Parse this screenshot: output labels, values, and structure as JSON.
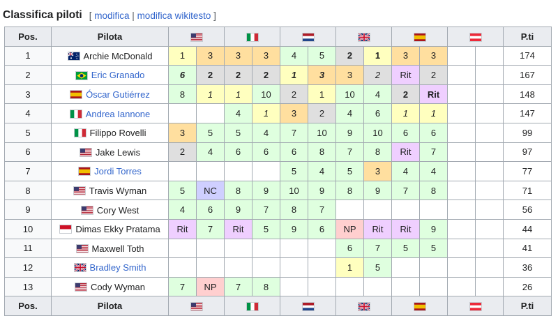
{
  "heading": {
    "title": "Classifica piloti",
    "edit_open": "[",
    "edit_label": "modifica",
    "edit_sep": "|",
    "wiki_label": "modifica wikitesto",
    "edit_close": "]"
  },
  "table": {
    "pos_header": "Pos.",
    "driver_header": "Pilota",
    "points_header": "P.ti",
    "rounds": [
      {
        "flag": "us-flag"
      },
      {
        "flag": "it-flag"
      },
      {
        "flag": "nl-flag"
      },
      {
        "flag": "gb-flag"
      },
      {
        "flag": "es-flag"
      },
      {
        "flag": "at-flag"
      }
    ],
    "rows": [
      {
        "pos": "1",
        "name": "Archie McDonald",
        "flag": "au-flag",
        "link": false,
        "points": "174",
        "results": [
          {
            "v": "1",
            "c": "c1"
          },
          {
            "v": "3",
            "c": "c3"
          },
          {
            "v": "3",
            "c": "c3"
          },
          {
            "v": "3",
            "c": "c3"
          },
          {
            "v": "4",
            "c": "cp"
          },
          {
            "v": "5",
            "c": "cp"
          },
          {
            "v": "2",
            "c": "c2",
            "b": true
          },
          {
            "v": "1",
            "c": "c1",
            "b": true
          },
          {
            "v": "3",
            "c": "c3"
          },
          {
            "v": "3",
            "c": "c3"
          },
          {
            "v": "",
            "c": ""
          },
          {
            "v": "",
            "c": ""
          }
        ]
      },
      {
        "pos": "2",
        "name": "Eric Granado",
        "flag": "br-flag",
        "link": true,
        "points": "167",
        "results": [
          {
            "v": "6",
            "c": "cp",
            "b": true,
            "i": true
          },
          {
            "v": "2",
            "c": "c2",
            "b": true
          },
          {
            "v": "2",
            "c": "c2",
            "b": true
          },
          {
            "v": "2",
            "c": "c2",
            "b": true
          },
          {
            "v": "1",
            "c": "c1",
            "b": true,
            "i": true
          },
          {
            "v": "3",
            "c": "c3",
            "b": true,
            "i": true
          },
          {
            "v": "3",
            "c": "c3"
          },
          {
            "v": "2",
            "c": "c2",
            "i": true
          },
          {
            "v": "Rit",
            "c": "cr"
          },
          {
            "v": "2",
            "c": "c2"
          },
          {
            "v": "",
            "c": ""
          },
          {
            "v": "",
            "c": ""
          }
        ]
      },
      {
        "pos": "3",
        "name": "Óscar Gutiérrez",
        "flag": "es-flag",
        "link": true,
        "points": "148",
        "results": [
          {
            "v": "8",
            "c": "cp"
          },
          {
            "v": "1",
            "c": "c1",
            "i": true
          },
          {
            "v": "1",
            "c": "c1",
            "i": true
          },
          {
            "v": "10",
            "c": "cp"
          },
          {
            "v": "2",
            "c": "c2"
          },
          {
            "v": "1",
            "c": "c1"
          },
          {
            "v": "10",
            "c": "cp"
          },
          {
            "v": "4",
            "c": "cp"
          },
          {
            "v": "2",
            "c": "c2",
            "b": true
          },
          {
            "v": "Rit",
            "c": "cr",
            "b": true
          },
          {
            "v": "",
            "c": ""
          },
          {
            "v": "",
            "c": ""
          }
        ]
      },
      {
        "pos": "4",
        "name": "Andrea Iannone",
        "flag": "it-flag",
        "link": true,
        "points": "147",
        "results": [
          {
            "v": "",
            "c": ""
          },
          {
            "v": "",
            "c": ""
          },
          {
            "v": "4",
            "c": "cp"
          },
          {
            "v": "1",
            "c": "c1",
            "i": true
          },
          {
            "v": "3",
            "c": "c3"
          },
          {
            "v": "2",
            "c": "c2"
          },
          {
            "v": "4",
            "c": "cp"
          },
          {
            "v": "6",
            "c": "cp"
          },
          {
            "v": "1",
            "c": "c1",
            "i": true
          },
          {
            "v": "1",
            "c": "c1",
            "i": true
          },
          {
            "v": "",
            "c": ""
          },
          {
            "v": "",
            "c": ""
          }
        ]
      },
      {
        "pos": "5",
        "name": "Filippo Rovelli",
        "flag": "it-flag",
        "link": false,
        "points": "99",
        "results": [
          {
            "v": "3",
            "c": "c3"
          },
          {
            "v": "5",
            "c": "cp"
          },
          {
            "v": "5",
            "c": "cp"
          },
          {
            "v": "4",
            "c": "cp"
          },
          {
            "v": "7",
            "c": "cp"
          },
          {
            "v": "10",
            "c": "cp"
          },
          {
            "v": "9",
            "c": "cp"
          },
          {
            "v": "10",
            "c": "cp"
          },
          {
            "v": "6",
            "c": "cp"
          },
          {
            "v": "6",
            "c": "cp"
          },
          {
            "v": "",
            "c": ""
          },
          {
            "v": "",
            "c": ""
          }
        ]
      },
      {
        "pos": "6",
        "name": "Jake Lewis",
        "flag": "us-flag",
        "link": false,
        "points": "97",
        "results": [
          {
            "v": "2",
            "c": "c2"
          },
          {
            "v": "4",
            "c": "cp"
          },
          {
            "v": "6",
            "c": "cp"
          },
          {
            "v": "6",
            "c": "cp"
          },
          {
            "v": "6",
            "c": "cp"
          },
          {
            "v": "8",
            "c": "cp"
          },
          {
            "v": "7",
            "c": "cp"
          },
          {
            "v": "8",
            "c": "cp"
          },
          {
            "v": "Rit",
            "c": "cr"
          },
          {
            "v": "7",
            "c": "cp"
          },
          {
            "v": "",
            "c": ""
          },
          {
            "v": "",
            "c": ""
          }
        ]
      },
      {
        "pos": "7",
        "name": "Jordi Torres",
        "flag": "es-flag",
        "link": true,
        "points": "77",
        "results": [
          {
            "v": "",
            "c": ""
          },
          {
            "v": "",
            "c": ""
          },
          {
            "v": "",
            "c": ""
          },
          {
            "v": "",
            "c": ""
          },
          {
            "v": "5",
            "c": "cp"
          },
          {
            "v": "4",
            "c": "cp"
          },
          {
            "v": "5",
            "c": "cp"
          },
          {
            "v": "3",
            "c": "c3"
          },
          {
            "v": "4",
            "c": "cp"
          },
          {
            "v": "4",
            "c": "cp"
          },
          {
            "v": "",
            "c": ""
          },
          {
            "v": "",
            "c": ""
          }
        ]
      },
      {
        "pos": "8",
        "name": "Travis Wyman",
        "flag": "us-flag",
        "link": false,
        "points": "71",
        "results": [
          {
            "v": "5",
            "c": "cp"
          },
          {
            "v": "NC",
            "c": "cnc"
          },
          {
            "v": "8",
            "c": "cp"
          },
          {
            "v": "9",
            "c": "cp"
          },
          {
            "v": "10",
            "c": "cp"
          },
          {
            "v": "9",
            "c": "cp"
          },
          {
            "v": "8",
            "c": "cp"
          },
          {
            "v": "9",
            "c": "cp"
          },
          {
            "v": "7",
            "c": "cp"
          },
          {
            "v": "8",
            "c": "cp"
          },
          {
            "v": "",
            "c": ""
          },
          {
            "v": "",
            "c": ""
          }
        ]
      },
      {
        "pos": "9",
        "name": "Cory West",
        "flag": "us-flag",
        "link": false,
        "points": "56",
        "results": [
          {
            "v": "4",
            "c": "cp"
          },
          {
            "v": "6",
            "c": "cp"
          },
          {
            "v": "9",
            "c": "cp"
          },
          {
            "v": "7",
            "c": "cp"
          },
          {
            "v": "8",
            "c": "cp"
          },
          {
            "v": "7",
            "c": "cp"
          },
          {
            "v": "",
            "c": ""
          },
          {
            "v": "",
            "c": ""
          },
          {
            "v": "",
            "c": ""
          },
          {
            "v": "",
            "c": ""
          },
          {
            "v": "",
            "c": ""
          },
          {
            "v": "",
            "c": ""
          }
        ]
      },
      {
        "pos": "10",
        "name": "Dimas Ekky Pratama",
        "flag": "id-flag",
        "link": false,
        "points": "44",
        "results": [
          {
            "v": "Rit",
            "c": "cr"
          },
          {
            "v": "7",
            "c": "cp"
          },
          {
            "v": "Rit",
            "c": "cr"
          },
          {
            "v": "5",
            "c": "cp"
          },
          {
            "v": "9",
            "c": "cp"
          },
          {
            "v": "6",
            "c": "cp"
          },
          {
            "v": "NP",
            "c": "cnp"
          },
          {
            "v": "Rit",
            "c": "cr"
          },
          {
            "v": "Rit",
            "c": "cr"
          },
          {
            "v": "9",
            "c": "cp"
          },
          {
            "v": "",
            "c": ""
          },
          {
            "v": "",
            "c": ""
          }
        ]
      },
      {
        "pos": "11",
        "name": "Maxwell Toth",
        "flag": "us-flag",
        "link": false,
        "points": "41",
        "results": [
          {
            "v": "",
            "c": ""
          },
          {
            "v": "",
            "c": ""
          },
          {
            "v": "",
            "c": ""
          },
          {
            "v": "",
            "c": ""
          },
          {
            "v": "",
            "c": ""
          },
          {
            "v": "",
            "c": ""
          },
          {
            "v": "6",
            "c": "cp"
          },
          {
            "v": "7",
            "c": "cp"
          },
          {
            "v": "5",
            "c": "cp"
          },
          {
            "v": "5",
            "c": "cp"
          },
          {
            "v": "",
            "c": ""
          },
          {
            "v": "",
            "c": ""
          }
        ]
      },
      {
        "pos": "12",
        "name": "Bradley Smith",
        "flag": "gb-flag",
        "link": true,
        "points": "36",
        "results": [
          {
            "v": "",
            "c": ""
          },
          {
            "v": "",
            "c": ""
          },
          {
            "v": "",
            "c": ""
          },
          {
            "v": "",
            "c": ""
          },
          {
            "v": "",
            "c": ""
          },
          {
            "v": "",
            "c": ""
          },
          {
            "v": "1",
            "c": "c1"
          },
          {
            "v": "5",
            "c": "cp"
          },
          {
            "v": "",
            "c": ""
          },
          {
            "v": "",
            "c": ""
          },
          {
            "v": "",
            "c": ""
          },
          {
            "v": "",
            "c": ""
          }
        ]
      },
      {
        "pos": "13",
        "name": "Cody Wyman",
        "flag": "us-flag",
        "link": false,
        "points": "26",
        "results": [
          {
            "v": "7",
            "c": "cp"
          },
          {
            "v": "NP",
            "c": "cnp"
          },
          {
            "v": "7",
            "c": "cp"
          },
          {
            "v": "8",
            "c": "cp"
          },
          {
            "v": "",
            "c": ""
          },
          {
            "v": "",
            "c": ""
          },
          {
            "v": "",
            "c": ""
          },
          {
            "v": "",
            "c": ""
          },
          {
            "v": "",
            "c": ""
          },
          {
            "v": "",
            "c": ""
          },
          {
            "v": "",
            "c": ""
          },
          {
            "v": "",
            "c": ""
          }
        ]
      }
    ]
  },
  "colors": {
    "gold": "#ffffbf",
    "silver": "#dfdfdf",
    "bronze": "#ffdf9f",
    "points": "#dfffdf",
    "retired": "#efcfff",
    "not_classified": "#cfcfff",
    "not_started": "#ffcfcf",
    "header": "#eaecf0",
    "link": "#3366cc"
  }
}
